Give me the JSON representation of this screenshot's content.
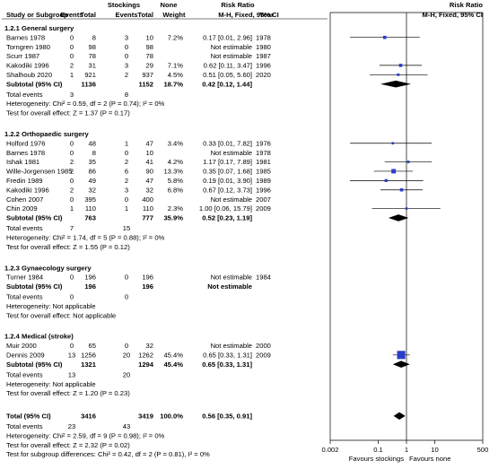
{
  "header": {
    "group1_name": "Stockings",
    "group2_name": "None",
    "rr_title": "Risk Ratio",
    "col_study": "Study or Subgroup",
    "col_events": "Events",
    "col_total": "Total",
    "col_weight": "Weight",
    "col_mh": "M-H, Fixed, 95% CI",
    "col_year": "Year",
    "plot_title": "Risk Ratio",
    "plot_sub": "M-H, Fixed, 95% CI"
  },
  "chart_data": {
    "type": "forest",
    "x_scale": "log",
    "xlim": [
      0.002,
      500
    ],
    "x_ticks": [
      "0.002",
      "0.1",
      "1",
      "10",
      "500"
    ],
    "favours_left": "Favours stockings",
    "favours_right": "Favours none",
    "subgroups": [
      {
        "title": "1.2.1 General surgery",
        "studies": [
          {
            "name": "Barnes 1978",
            "e1": "0",
            "t1": "8",
            "e2": "3",
            "t2": "10",
            "weight": "7.2%",
            "ci_text": "0.17 [0.01, 2.96]",
            "year": "1978",
            "rr": 0.17,
            "lo": 0.01,
            "hi": 2.96
          },
          {
            "name": "Torngren 1980",
            "e1": "0",
            "t1": "98",
            "e2": "0",
            "t2": "98",
            "weight": "",
            "ci_text": "Not estimable",
            "year": "1980",
            "rr": null
          },
          {
            "name": "Scurr 1987",
            "e1": "0",
            "t1": "78",
            "e2": "0",
            "t2": "78",
            "weight": "",
            "ci_text": "Not estimable",
            "year": "1987",
            "rr": null
          },
          {
            "name": "Kakodiki 1996",
            "e1": "2",
            "t1": "31",
            "e2": "3",
            "t2": "29",
            "weight": "7.1%",
            "ci_text": "0.62 [0.11, 3.47]",
            "year": "1996",
            "rr": 0.62,
            "lo": 0.11,
            "hi": 3.47
          },
          {
            "name": "Shalhoub 2020",
            "e1": "1",
            "t1": "921",
            "e2": "2",
            "t2": "937",
            "weight": "4.5%",
            "ci_text": "0.51 [0.05, 5.60]",
            "year": "2020",
            "rr": 0.51,
            "lo": 0.05,
            "hi": 5.6
          }
        ],
        "subtotal": {
          "label": "Subtotal (95% CI)",
          "t1": "1136",
          "t2": "1152",
          "weight": "18.7%",
          "ci_text": "0.42 [0.12, 1.44]",
          "rr": 0.42,
          "lo": 0.12,
          "hi": 1.44
        },
        "total_events": {
          "label": "Total events",
          "e1": "3",
          "e2": "8"
        },
        "heterogeneity": "Heterogeneity: Chi² = 0.59, df = 2 (P = 0.74); I² = 0%",
        "overall": "Test for overall effect: Z = 1.37 (P = 0.17)"
      },
      {
        "title": "1.2.2 Orthopaedic surgery",
        "studies": [
          {
            "name": "Holford 1976",
            "e1": "0",
            "t1": "48",
            "e2": "1",
            "t2": "47",
            "weight": "3.4%",
            "ci_text": "0.33 [0.01, 7.82]",
            "year": "1976",
            "rr": 0.33,
            "lo": 0.01,
            "hi": 7.82
          },
          {
            "name": "Barnes 1978",
            "e1": "0",
            "t1": "8",
            "e2": "0",
            "t2": "10",
            "weight": "",
            "ci_text": "Not estimable",
            "year": "1978",
            "rr": null
          },
          {
            "name": "Ishak 1981",
            "e1": "2",
            "t1": "35",
            "e2": "2",
            "t2": "41",
            "weight": "4.2%",
            "ci_text": "1.17 [0.17, 7.89]",
            "year": "1981",
            "rr": 1.17,
            "lo": 0.17,
            "hi": 7.89
          },
          {
            "name": "Wille-Jorgensen 1985",
            "e1": "2",
            "t1": "86",
            "e2": "6",
            "t2": "90",
            "weight": "13.3%",
            "ci_text": "0.35 [0.07, 1.68]",
            "year": "1985",
            "rr": 0.35,
            "lo": 0.07,
            "hi": 1.68
          },
          {
            "name": "Fredin 1989",
            "e1": "0",
            "t1": "49",
            "e2": "2",
            "t2": "47",
            "weight": "5.8%",
            "ci_text": "0.19 [0.01, 3.90]",
            "year": "1989",
            "rr": 0.19,
            "lo": 0.01,
            "hi": 3.9
          },
          {
            "name": "Kakodiki 1996",
            "e1": "2",
            "t1": "32",
            "e2": "3",
            "t2": "32",
            "weight": "6.8%",
            "ci_text": "0.67 [0.12, 3.73]",
            "year": "1996",
            "rr": 0.67,
            "lo": 0.12,
            "hi": 3.73
          },
          {
            "name": "Cohen 2007",
            "e1": "0",
            "t1": "395",
            "e2": "0",
            "t2": "400",
            "weight": "",
            "ci_text": "Not estimable",
            "year": "2007",
            "rr": null
          },
          {
            "name": "Chin 2009",
            "e1": "1",
            "t1": "110",
            "e2": "1",
            "t2": "110",
            "weight": "2.3%",
            "ci_text": "1.00 [0.06, 15.79]",
            "year": "2009",
            "rr": 1.0,
            "lo": 0.06,
            "hi": 15.79
          }
        ],
        "subtotal": {
          "label": "Subtotal (95% CI)",
          "t1": "763",
          "t2": "777",
          "weight": "35.9%",
          "ci_text": "0.52 [0.23, 1.19]",
          "rr": 0.52,
          "lo": 0.23,
          "hi": 1.19
        },
        "total_events": {
          "label": "Total events",
          "e1": "7",
          "e2": "15"
        },
        "heterogeneity": "Heterogeneity: Chi² = 1.74, df = 5 (P = 0.88); I² = 0%",
        "overall": "Test for overall effect: Z = 1.55 (P = 0.12)"
      },
      {
        "title": "1.2.3 Gynaecology surgery",
        "studies": [
          {
            "name": "Turner 1984",
            "e1": "0",
            "t1": "196",
            "e2": "0",
            "t2": "196",
            "weight": "",
            "ci_text": "Not estimable",
            "year": "1984",
            "rr": null
          }
        ],
        "subtotal": {
          "label": "Subtotal (95% CI)",
          "t1": "196",
          "t2": "196",
          "weight": "",
          "ci_text": "Not estimable",
          "rr": null
        },
        "total_events": {
          "label": "Total events",
          "e1": "0",
          "e2": "0"
        },
        "heterogeneity": "Heterogeneity: Not applicable",
        "overall": "Test for overall effect: Not applicable"
      },
      {
        "title": "1.2.4 Medical (stroke)",
        "studies": [
          {
            "name": "Muir 2000",
            "e1": "0",
            "t1": "65",
            "e2": "0",
            "t2": "32",
            "weight": "",
            "ci_text": "Not estimable",
            "year": "2000",
            "rr": null
          },
          {
            "name": "Dennis 2009",
            "e1": "13",
            "t1": "1256",
            "e2": "20",
            "t2": "1262",
            "weight": "45.4%",
            "ci_text": "0.65 [0.33, 1.31]",
            "year": "2009",
            "rr": 0.65,
            "lo": 0.33,
            "hi": 1.31
          }
        ],
        "subtotal": {
          "label": "Subtotal (95% CI)",
          "t1": "1321",
          "t2": "1294",
          "weight": "45.4%",
          "ci_text": "0.65 [0.33, 1.31]",
          "rr": 0.65,
          "lo": 0.33,
          "hi": 1.31
        },
        "total_events": {
          "label": "Total events",
          "e1": "13",
          "e2": "20"
        },
        "heterogeneity": "Heterogeneity: Not applicable",
        "overall": "Test for overall effect: Z = 1.20 (P = 0.23)"
      }
    ],
    "total": {
      "label": "Total (95% CI)",
      "t1": "3416",
      "t2": "3419",
      "weight": "100.0%",
      "ci_text": "0.56 [0.35, 0.91]",
      "rr": 0.56,
      "lo": 0.35,
      "hi": 0.91
    },
    "total_events": {
      "label": "Total events",
      "e1": "23",
      "e2": "43"
    },
    "heterogeneity": "Heterogeneity: Chi² = 2.59, df = 9 (P = 0.98); I² = 0%",
    "overall": "Test for overall effect: Z = 2.32 (P = 0.02)",
    "subgroup_diff": "Test for subgroup differences: Chi² = 0.42, df = 2 (P = 0.81), I² = 0%"
  }
}
